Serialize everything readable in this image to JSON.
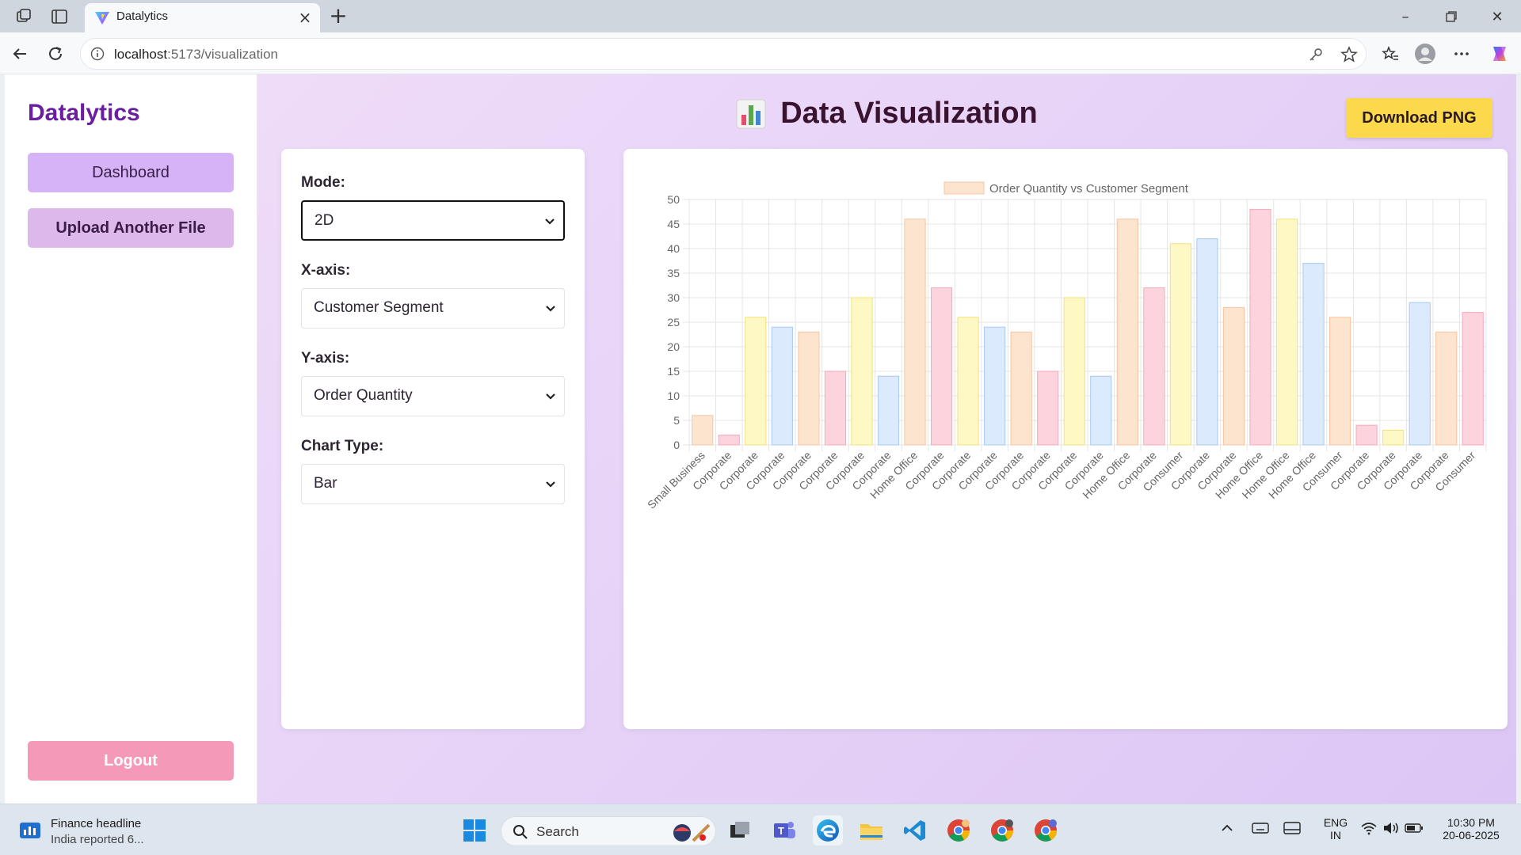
{
  "browser": {
    "tab_title": "Datalytics",
    "url_host": "localhost",
    "url_rest": ":5173/visualization"
  },
  "sidebar": {
    "brand": "Datalytics",
    "dashboard_label": "Dashboard",
    "upload_label": "Upload Another File",
    "logout_label": "Logout"
  },
  "header": {
    "title": "Data Visualization",
    "title_icon": "bar-chart-emoji-icon",
    "download_label": "Download PNG"
  },
  "controls": {
    "mode_label": "Mode:",
    "mode_value": "2D",
    "x_label": "X-axis:",
    "x_value": "Customer Segment",
    "y_label": "Y-axis:",
    "y_value": "Order Quantity",
    "type_label": "Chart Type:",
    "type_value": "Bar"
  },
  "chart_data": {
    "type": "bar",
    "legend": "Order Quantity vs Customer Segment",
    "legend_position": "top",
    "ylim": [
      0,
      50
    ],
    "yticks": [
      0,
      5,
      10,
      15,
      20,
      25,
      30,
      35,
      40,
      45,
      50
    ],
    "grid": true,
    "categories": [
      "Small Business",
      "Corporate",
      "Corporate",
      "Corporate",
      "Corporate",
      "Corporate",
      "Corporate",
      "Corporate",
      "Home Office",
      "Corporate",
      "Corporate",
      "Corporate",
      "Corporate",
      "Corporate",
      "Corporate",
      "Corporate",
      "Home Office",
      "Corporate",
      "Consumer",
      "Corporate",
      "Corporate",
      "Home Office",
      "Home Office",
      "Home Office",
      "Consumer",
      "Corporate",
      "Corporate",
      "Corporate",
      "Corporate",
      "Consumer"
    ],
    "values": [
      6,
      2,
      26,
      24,
      23,
      15,
      30,
      14,
      46,
      32,
      26,
      24,
      23,
      15,
      30,
      14,
      46,
      32,
      41,
      42,
      28,
      48,
      46,
      37,
      26,
      4,
      3,
      29,
      23,
      27
    ],
    "bar_fills": [
      "#fde4cf",
      "#fdd4dd",
      "#fef9c4",
      "#dbeafc"
    ],
    "bar_strokes": [
      "#f8c4a0",
      "#f7a8ba",
      "#f2e17a",
      "#a9c9ef"
    ]
  },
  "taskbar": {
    "news_title": "Finance headline",
    "news_sub": "India reported 6...",
    "search_placeholder": "Search",
    "lang_top": "ENG",
    "lang_bottom": "IN",
    "time": "10:30 PM",
    "date": "20-06-2025"
  }
}
